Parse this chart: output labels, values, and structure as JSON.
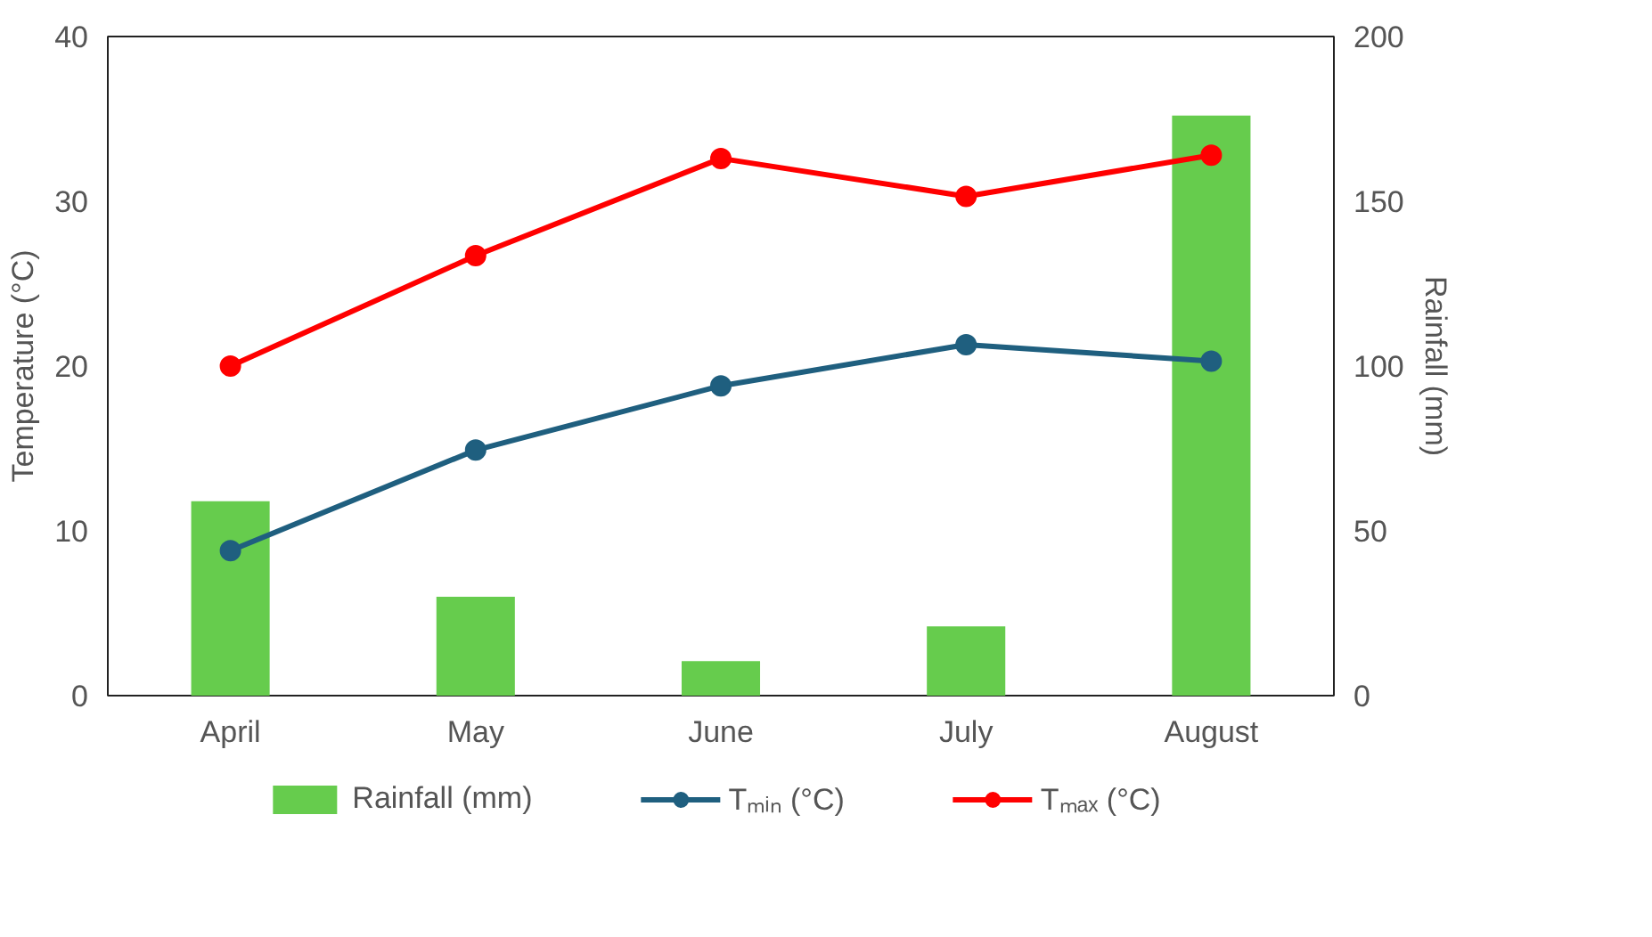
{
  "chart_data": {
    "type": "line",
    "categories": [
      "April",
      "May",
      "June",
      "July",
      "August"
    ],
    "ylabel": "Temperature (°C)",
    "y2label": "Rainfall (mm)",
    "ylim": [
      0,
      40
    ],
    "yticks": [
      0,
      10,
      20,
      30,
      40
    ],
    "y2lim": [
      0,
      200
    ],
    "y2ticks": [
      0,
      50,
      100,
      150,
      200
    ],
    "series": [
      {
        "name": "Rainfall (mm)",
        "type": "bar",
        "axis": "y2",
        "color": "#66cc4d",
        "values": [
          59,
          30,
          10.5,
          21,
          176
        ]
      },
      {
        "name": "Tₘᵢₙ (°C)",
        "color": "#1f5f7f",
        "values": [
          8.8,
          14.9,
          18.8,
          21.3,
          20.3
        ]
      },
      {
        "name": "Tₘₐₓ (°C)",
        "color": "#ff0000",
        "values": [
          20.0,
          26.7,
          32.6,
          30.3,
          32.8
        ]
      }
    ],
    "marker": "circle",
    "grid": false,
    "legend": "bottom"
  }
}
